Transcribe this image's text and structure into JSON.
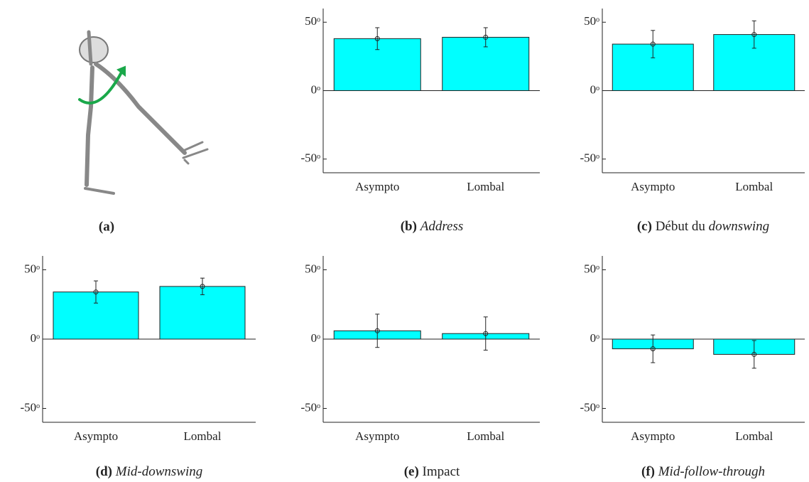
{
  "figure": {
    "caption_label": "(a)"
  },
  "chart_data": [
    {
      "type": "bar",
      "caption_label": "(b)",
      "caption_italic": "Address",
      "categories": [
        "Asympto",
        "Lombal"
      ],
      "values": [
        38,
        39
      ],
      "errors": [
        8,
        7
      ],
      "color": "#00ffff",
      "ylim": [
        -60,
        60
      ],
      "yticks": [
        {
          "value": -50,
          "label": "-50ᵒ"
        },
        {
          "value": 0,
          "label": "0ᵒ"
        },
        {
          "value": 50,
          "label": "50ᵒ"
        }
      ]
    },
    {
      "type": "bar",
      "caption_label": "(c)",
      "caption_text": "Début du",
      "caption_italic": "downswing",
      "categories": [
        "Asympto",
        "Lombal"
      ],
      "values": [
        34,
        41
      ],
      "errors": [
        10,
        10
      ],
      "color": "#00ffff",
      "ylim": [
        -60,
        60
      ],
      "yticks": [
        {
          "value": -50,
          "label": "-50ᵒ"
        },
        {
          "value": 0,
          "label": "0ᵒ"
        },
        {
          "value": 50,
          "label": "50ᵒ"
        }
      ]
    },
    {
      "type": "bar",
      "caption_label": "(d)",
      "caption_italic": "Mid-downswing",
      "categories": [
        "Asympto",
        "Lombal"
      ],
      "values": [
        34,
        38
      ],
      "errors": [
        8,
        6
      ],
      "color": "#00ffff",
      "ylim": [
        -60,
        60
      ],
      "yticks": [
        {
          "value": -50,
          "label": "-50ᵒ"
        },
        {
          "value": 0,
          "label": "0ᵒ"
        },
        {
          "value": 50,
          "label": "50ᵒ"
        }
      ]
    },
    {
      "type": "bar",
      "caption_label": "(e)",
      "caption_text": "Impact",
      "categories": [
        "Asympto",
        "Lombal"
      ],
      "values": [
        6,
        4
      ],
      "errors": [
        12,
        12
      ],
      "color": "#00ffff",
      "ylim": [
        -60,
        60
      ],
      "yticks": [
        {
          "value": -50,
          "label": "-50ᵒ"
        },
        {
          "value": 0,
          "label": "0ᵒ"
        },
        {
          "value": 50,
          "label": "50ᵒ"
        }
      ]
    },
    {
      "type": "bar",
      "caption_label": "(f)",
      "caption_italic": "Mid-follow-through",
      "categories": [
        "Asympto",
        "Lombal"
      ],
      "values": [
        -7,
        -11
      ],
      "errors": [
        10,
        10
      ],
      "color": "#00ffff",
      "ylim": [
        -60,
        60
      ],
      "yticks": [
        {
          "value": -50,
          "label": "-50ᵒ"
        },
        {
          "value": 0,
          "label": "0ᵒ"
        },
        {
          "value": 50,
          "label": "50ᵒ"
        }
      ]
    }
  ]
}
